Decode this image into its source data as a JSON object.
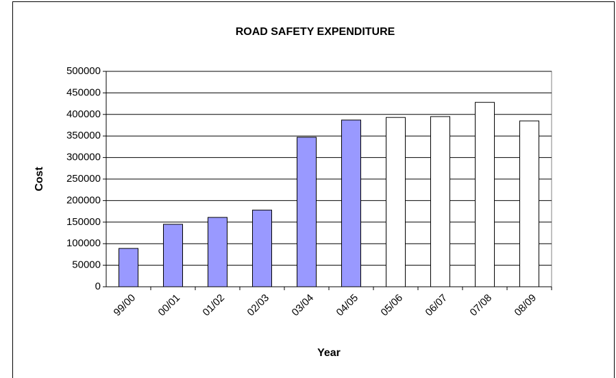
{
  "chart_data": {
    "type": "bar",
    "title": "ROAD SAFETY EXPENDITURE",
    "x_label": "Year",
    "y_label": "Cost",
    "categories": [
      "99/00",
      "00/01",
      "01/02",
      "02/03",
      "03/04",
      "04/05",
      "05/06",
      "06/07",
      "07/08",
      "08/09"
    ],
    "values": [
      89000,
      145000,
      161000,
      178000,
      347000,
      387000,
      393000,
      395000,
      428000,
      385000
    ],
    "colors": [
      "#9999ff",
      "#9999ff",
      "#9999ff",
      "#9999ff",
      "#9999ff",
      "#9999ff",
      "#ffffff",
      "#ffffff",
      "#ffffff",
      "#ffffff"
    ],
    "ylim": [
      0,
      500000
    ],
    "yticks": [
      0,
      50000,
      100000,
      150000,
      200000,
      250000,
      300000,
      350000,
      400000,
      450000,
      500000
    ],
    "grid": true
  }
}
